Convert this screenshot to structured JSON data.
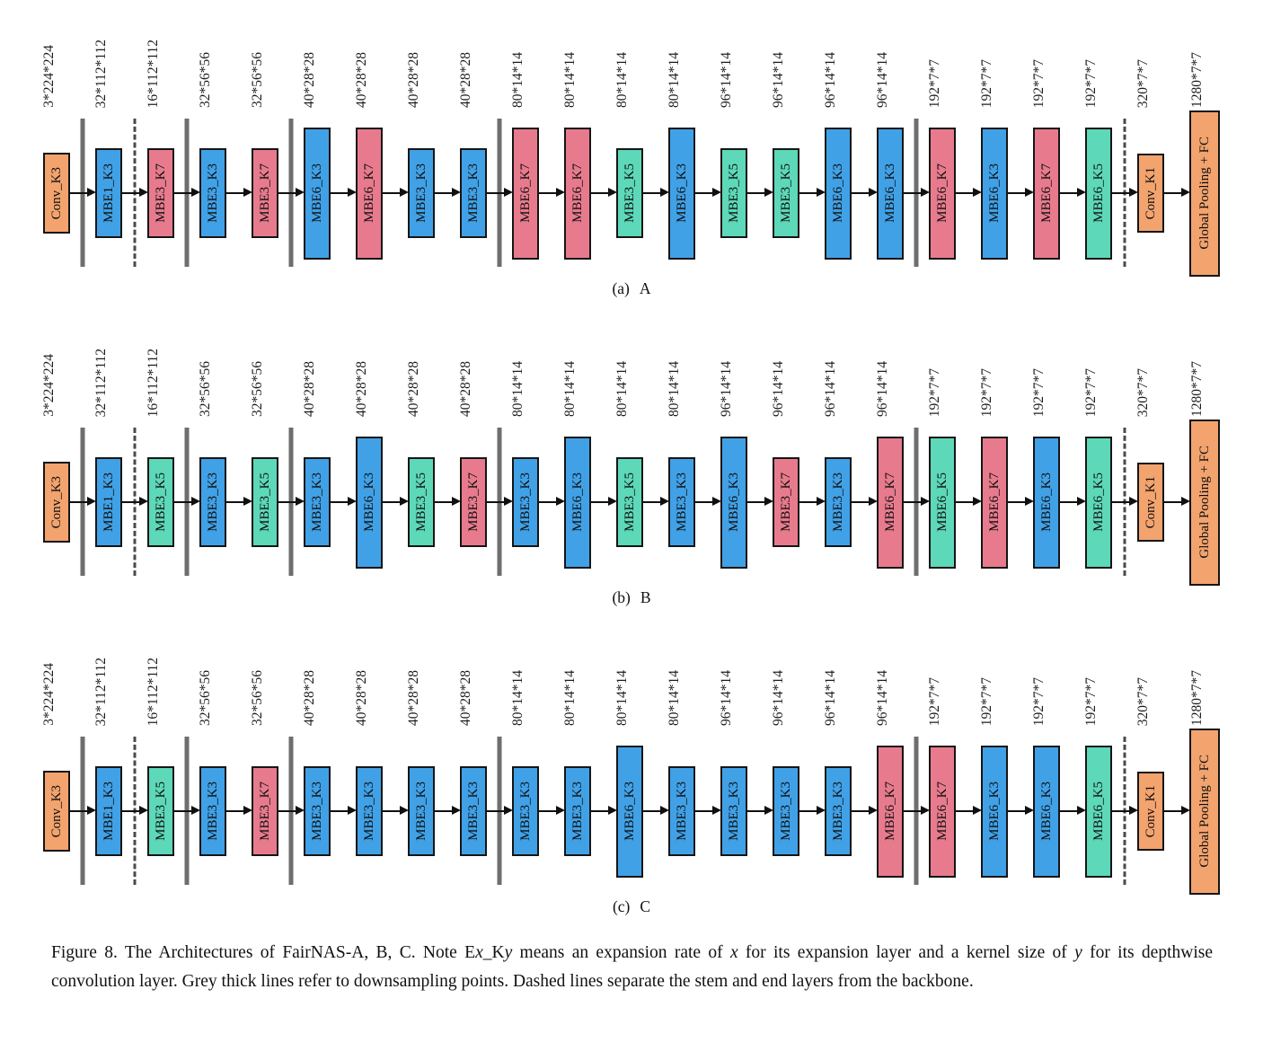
{
  "figure": {
    "caption_segments": [
      {
        "text": "Figure 8. The Architectures of FairNAS-A, B, C. Note E",
        "italic": false
      },
      {
        "text": "x",
        "italic": true
      },
      {
        "text": "_K",
        "italic": false
      },
      {
        "text": "y",
        "italic": true
      },
      {
        "text": " means an expansion rate of ",
        "italic": false
      },
      {
        "text": "x",
        "italic": true
      },
      {
        "text": " for its expansion layer and a kernel size of ",
        "italic": false
      },
      {
        "text": "y",
        "italic": true
      },
      {
        "text": " for its depthwise convolution layer. Grey thick lines refer to downsampling points. Dashed lines separate the stem and end layers from the backbone.",
        "italic": false
      }
    ]
  },
  "colors": {
    "orange": "#F2A36E",
    "blue": "#41A1E6",
    "red": "#E77B8D",
    "teal": "#5DD8B8",
    "separator_grey": "#6e6e6e",
    "dashed_line": "#4a4a4a",
    "arrow": "#101010",
    "block_border": "#151515"
  },
  "block_heights": {
    "stem": 90,
    "med": 100,
    "tall": 147,
    "k1": 88,
    "gpfc": 185
  },
  "legend_note": {
    "K3": "blue",
    "K5": "teal",
    "K7": "red",
    "Conv/Pooling": "orange"
  },
  "separators": [
    {
      "after": 0,
      "style": "solid"
    },
    {
      "after": 1,
      "style": "dashed"
    },
    {
      "after": 2,
      "style": "solid"
    },
    {
      "after": 4,
      "style": "solid"
    },
    {
      "after": 8,
      "style": "solid"
    },
    {
      "after": 16,
      "style": "solid"
    },
    {
      "after": 20,
      "style": "dashed"
    }
  ],
  "panels": [
    {
      "id": "a",
      "caption_index": "(a)",
      "letter": "A",
      "blocks": [
        {
          "label": "Conv_K3",
          "dim": "3*224*224"
        },
        {
          "label": "MBE1_K3",
          "dim": "32*112*112"
        },
        {
          "label": "MBE3_K7",
          "dim": "16*112*112"
        },
        {
          "label": "MBE3_K3",
          "dim": "32*56*56"
        },
        {
          "label": "MBE3_K7",
          "dim": "32*56*56"
        },
        {
          "label": "MBE6_K3",
          "dim": "40*28*28"
        },
        {
          "label": "MBE6_K7",
          "dim": "40*28*28"
        },
        {
          "label": "MBE3_K3",
          "dim": "40*28*28"
        },
        {
          "label": "MBE3_K3",
          "dim": "40*28*28"
        },
        {
          "label": "MBE6_K7",
          "dim": "80*14*14"
        },
        {
          "label": "MBE6_K7",
          "dim": "80*14*14"
        },
        {
          "label": "MBE3_K5",
          "dim": "80*14*14"
        },
        {
          "label": "MBE6_K3",
          "dim": "80*14*14"
        },
        {
          "label": "MBE3_K5",
          "dim": "96*14*14"
        },
        {
          "label": "MBE3_K5",
          "dim": "96*14*14"
        },
        {
          "label": "MBE6_K3",
          "dim": "96*14*14"
        },
        {
          "label": "MBE6_K3",
          "dim": "96*14*14"
        },
        {
          "label": "MBE6_K7",
          "dim": "192*7*7"
        },
        {
          "label": "MBE6_K3",
          "dim": "192*7*7"
        },
        {
          "label": "MBE6_K7",
          "dim": "192*7*7"
        },
        {
          "label": "MBE6_K5",
          "dim": "192*7*7"
        },
        {
          "label": "Conv_K1",
          "dim": "320*7*7"
        },
        {
          "label": "Global Pooling + FC",
          "dim": "1280*7*7"
        }
      ]
    },
    {
      "id": "b",
      "caption_index": "(b)",
      "letter": "B",
      "blocks": [
        {
          "label": "Conv_K3",
          "dim": "3*224*224"
        },
        {
          "label": "MBE1_K3",
          "dim": "32*112*112"
        },
        {
          "label": "MBE3_K5",
          "dim": "16*112*112"
        },
        {
          "label": "MBE3_K3",
          "dim": "32*56*56"
        },
        {
          "label": "MBE3_K5",
          "dim": "32*56*56"
        },
        {
          "label": "MBE3_K3",
          "dim": "40*28*28"
        },
        {
          "label": "MBE6_K3",
          "dim": "40*28*28"
        },
        {
          "label": "MBE3_K5",
          "dim": "40*28*28"
        },
        {
          "label": "MBE3_K7",
          "dim": "40*28*28"
        },
        {
          "label": "MBE3_K3",
          "dim": "80*14*14"
        },
        {
          "label": "MBE6_K3",
          "dim": "80*14*14"
        },
        {
          "label": "MBE3_K5",
          "dim": "80*14*14"
        },
        {
          "label": "MBE3_K3",
          "dim": "80*14*14"
        },
        {
          "label": "MBE6_K3",
          "dim": "96*14*14"
        },
        {
          "label": "MBE3_K7",
          "dim": "96*14*14"
        },
        {
          "label": "MBE3_K3",
          "dim": "96*14*14"
        },
        {
          "label": "MBE6_K7",
          "dim": "96*14*14"
        },
        {
          "label": "MBE6_K5",
          "dim": "192*7*7"
        },
        {
          "label": "MBE6_K7",
          "dim": "192*7*7"
        },
        {
          "label": "MBE6_K3",
          "dim": "192*7*7"
        },
        {
          "label": "MBE6_K5",
          "dim": "192*7*7"
        },
        {
          "label": "Conv_K1",
          "dim": "320*7*7"
        },
        {
          "label": "Global Pooling + FC",
          "dim": "1280*7*7"
        }
      ]
    },
    {
      "id": "c",
      "caption_index": "(c)",
      "letter": "C",
      "blocks": [
        {
          "label": "Conv_K3",
          "dim": "3*224*224"
        },
        {
          "label": "MBE1_K3",
          "dim": "32*112*112"
        },
        {
          "label": "MBE3_K5",
          "dim": "16*112*112"
        },
        {
          "label": "MBE3_K3",
          "dim": "32*56*56"
        },
        {
          "label": "MBE3_K7",
          "dim": "32*56*56"
        },
        {
          "label": "MBE3_K3",
          "dim": "40*28*28"
        },
        {
          "label": "MBE3_K3",
          "dim": "40*28*28"
        },
        {
          "label": "MBE3_K3",
          "dim": "40*28*28"
        },
        {
          "label": "MBE3_K3",
          "dim": "40*28*28"
        },
        {
          "label": "MBE3_K3",
          "dim": "80*14*14"
        },
        {
          "label": "MBE3_K3",
          "dim": "80*14*14"
        },
        {
          "label": "MBE6_K3",
          "dim": "80*14*14"
        },
        {
          "label": "MBE3_K3",
          "dim": "80*14*14"
        },
        {
          "label": "MBE3_K3",
          "dim": "96*14*14"
        },
        {
          "label": "MBE3_K3",
          "dim": "96*14*14"
        },
        {
          "label": "MBE3_K3",
          "dim": "96*14*14"
        },
        {
          "label": "MBE6_K7",
          "dim": "96*14*14"
        },
        {
          "label": "MBE6_K7",
          "dim": "192*7*7"
        },
        {
          "label": "MBE6_K3",
          "dim": "192*7*7"
        },
        {
          "label": "MBE6_K3",
          "dim": "192*7*7"
        },
        {
          "label": "MBE6_K5",
          "dim": "192*7*7"
        },
        {
          "label": "Conv_K1",
          "dim": "320*7*7"
        },
        {
          "label": "Global Pooling + FC",
          "dim": "1280*7*7"
        }
      ]
    }
  ]
}
